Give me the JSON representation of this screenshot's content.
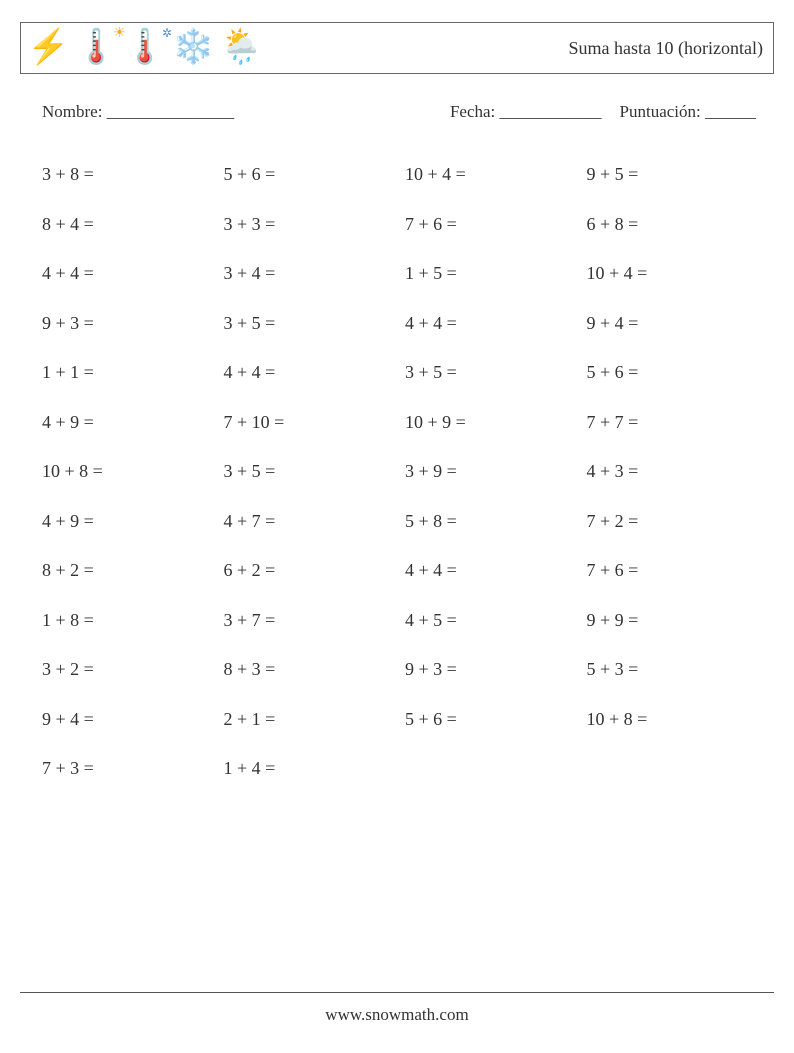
{
  "title": "Suma hasta 10 (horizontal)",
  "icons": [
    "⚡",
    "🌡️☀️",
    "🌡️❄️",
    "❄️",
    "🌦️"
  ],
  "icons_render": [
    "⚡",
    "🌡️",
    "🌡️",
    "❄️",
    "🌦️"
  ],
  "meta": {
    "name_label": "Nombre: _______________",
    "date_label": "Fecha: ____________",
    "score_label": "Puntuación: ______"
  },
  "problems_grid": {
    "type": "worksheet-grid",
    "columns": 4,
    "rows": 13,
    "text_color": "#333333",
    "font_size_pt": 14,
    "cells": [
      [
        "3 + 8 =",
        "5 + 6 =",
        "10 + 4 =",
        "9 + 5 ="
      ],
      [
        "8 + 4 =",
        "3 + 3 =",
        "7 + 6 =",
        "6 + 8 ="
      ],
      [
        "4 + 4 =",
        "3 + 4 =",
        "1 + 5 =",
        "10 + 4 ="
      ],
      [
        "9 + 3 =",
        "3 + 5 =",
        "4 + 4 =",
        "9 + 4 ="
      ],
      [
        "1 + 1 =",
        "4 + 4 =",
        "3 + 5 =",
        "5 + 6 ="
      ],
      [
        "4 + 9 =",
        "7 + 10 =",
        "10 + 9 =",
        "7 + 7 ="
      ],
      [
        "10 + 8 =",
        "3 + 5 =",
        "3 + 9 =",
        "4 + 3 ="
      ],
      [
        "4 + 9 =",
        "4 + 7 =",
        "5 + 8 =",
        "7 + 2 ="
      ],
      [
        "8 + 2 =",
        "6 + 2 =",
        "4 + 4 =",
        "7 + 6 ="
      ],
      [
        "1 + 8 =",
        "3 + 7 =",
        "4 + 5 =",
        "9 + 9 ="
      ],
      [
        "3 + 2 =",
        "8 + 3 =",
        "9 + 3 =",
        "5 + 3 ="
      ],
      [
        "9 + 4 =",
        "2 + 1 =",
        "5 + 6 =",
        "10 + 8 ="
      ],
      [
        "7 + 3 =",
        "1 + 4 =",
        "",
        ""
      ]
    ]
  },
  "footer": "www.snowmath.com",
  "colors": {
    "border": "#666666",
    "text": "#333333",
    "background": "#ffffff"
  }
}
